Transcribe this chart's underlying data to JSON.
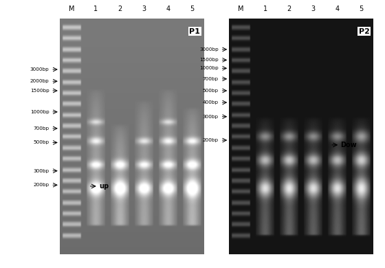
{
  "fig_width": 5.6,
  "fig_height": 3.9,
  "p1_label": "P1",
  "p2_label": "P2",
  "lane_labels": [
    "M",
    "1",
    "2",
    "3",
    "4",
    "5"
  ],
  "p1_markers": [
    "3000bp",
    "2000bp",
    "1500bp",
    "1000bp",
    "700bp",
    "500bp",
    "300bp",
    "200bp"
  ],
  "p1_marker_yrow": [
    0.215,
    0.265,
    0.305,
    0.395,
    0.465,
    0.525,
    0.645,
    0.705
  ],
  "p2_markers": [
    "3000bp",
    "1500bp",
    "1000bp",
    "700bp",
    "500bp",
    "400bp",
    "300bp",
    "200bp"
  ],
  "p2_marker_yrow": [
    0.13,
    0.175,
    0.21,
    0.255,
    0.305,
    0.355,
    0.415,
    0.515
  ],
  "p1_annot": "up",
  "p2_annot": "Dow",
  "p1_bg": 0.42,
  "p2_bg": 0.08
}
